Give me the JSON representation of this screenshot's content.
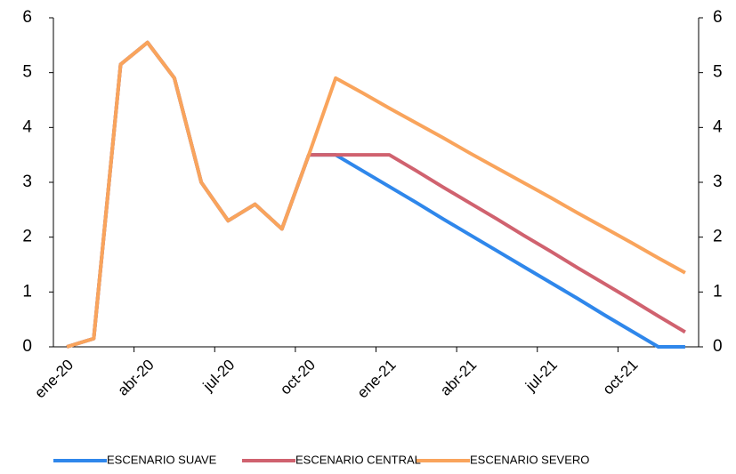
{
  "chart_data": {
    "type": "line",
    "categories": [
      "ene-20",
      null,
      null,
      "abr-20",
      null,
      null,
      "jul-20",
      null,
      null,
      "oct-20",
      null,
      null,
      "ene-21",
      null,
      null,
      "abr-21",
      null,
      null,
      "jul-21",
      null,
      null,
      "oct-21",
      null,
      null
    ],
    "series": [
      {
        "name": "ESCENARIO SUAVE",
        "color": "#2f87eb",
        "values": [
          0,
          0.15,
          5.15,
          5.55,
          4.9,
          3.0,
          2.3,
          2.6,
          2.15,
          3.5,
          3.5,
          3.21,
          2.92,
          2.63,
          2.33,
          2.04,
          1.75,
          1.46,
          1.17,
          0.88,
          0.58,
          0.29,
          0,
          0
        ]
      },
      {
        "name": "ESCENARIO CENTRAL",
        "color": "#d0626f",
        "values": [
          0,
          0.15,
          5.15,
          5.55,
          4.9,
          3.0,
          2.3,
          2.6,
          2.15,
          3.5,
          3.5,
          3.5,
          3.5,
          3.21,
          2.91,
          2.62,
          2.33,
          2.03,
          1.74,
          1.44,
          1.15,
          0.86,
          0.56,
          0.27
        ]
      },
      {
        "name": "ESCENARIO SEVERO",
        "color": "#f9a45c",
        "values": [
          0,
          0.15,
          5.15,
          5.55,
          4.9,
          3.0,
          2.3,
          2.6,
          2.15,
          3.5,
          4.9,
          4.63,
          4.35,
          4.08,
          3.81,
          3.53,
          3.26,
          2.99,
          2.72,
          2.44,
          2.17,
          1.9,
          1.62,
          1.35
        ]
      }
    ],
    "ylim": [
      0,
      6
    ],
    "yticks": [
      0,
      1,
      2,
      3,
      4,
      5,
      6
    ],
    "y2lim": [
      0,
      6
    ],
    "y2ticks": [
      0,
      1,
      2,
      3,
      4,
      5,
      6
    ],
    "grid": false,
    "legend": "bottom"
  }
}
